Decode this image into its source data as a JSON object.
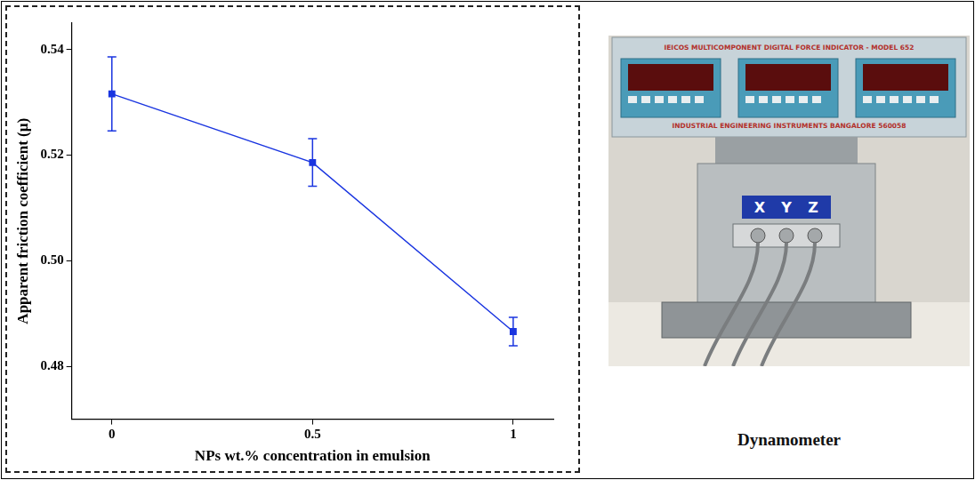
{
  "chart_data": {
    "type": "line",
    "x_label": "NPs wt.% concentration in emulsion",
    "y_label": "Apparent friction coefficient (μ)",
    "x": [
      0,
      0.5,
      1
    ],
    "values": [
      0.5316,
      0.5186,
      0.4866
    ],
    "errors": [
      0.007,
      0.0045,
      0.0027
    ],
    "color": "#1a35e0",
    "marker": "square",
    "line_style": "solid",
    "grid": false,
    "xlim": [
      -0.1,
      1.1
    ],
    "xticks": [
      0,
      0.5,
      1
    ],
    "ylim": [
      0.47,
      0.545
    ],
    "yticks": [
      0.48,
      {
        "value": 0.5,
        "label": "0.50"
      },
      0.52,
      0.54
    ]
  },
  "photo": {
    "caption": "Dynamometer",
    "header": "IEICOS MULTICOMPONENT DIGITAL FORCE INDICATOR - MODEL 652",
    "footer": "INDUSTRIAL ENGINEERING INSTRUMENTS  BANGALORE  560058",
    "axes_label": [
      "X",
      "Y",
      "Z"
    ]
  }
}
